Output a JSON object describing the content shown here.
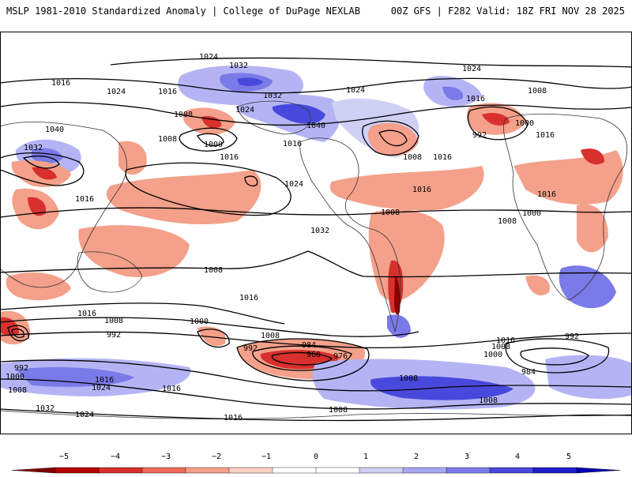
{
  "header": {
    "title_left": "MSLP 1981-2010 Standardized Anomaly | College of DuPage NEXLAB",
    "title_right": "00Z GFS | F282 Valid: 18Z FRI NOV 28 2025"
  },
  "map": {
    "contour_labels": [
      "1024",
      "1032",
      "1016",
      "1024",
      "1016",
      "1008",
      "1032",
      "1024",
      "1040",
      "1016",
      "1024",
      "1032",
      "1040",
      "1016",
      "1008",
      "1000",
      "1016",
      "1024",
      "1008",
      "992",
      "1000",
      "1008",
      "1016",
      "1016",
      "1024",
      "1032",
      "1016",
      "1008",
      "1016",
      "1016",
      "1008",
      "1000",
      "1008",
      "1016",
      "1008",
      "984",
      "968",
      "976",
      "992",
      "1008",
      "1000",
      "992",
      "1016",
      "1016",
      "1000",
      "992",
      "1008",
      "1016",
      "1024",
      "1032",
      "1024",
      "1016",
      "1008",
      "1008",
      "1008",
      "992",
      "1000",
      "984",
      "1016",
      "1008"
    ],
    "colors": {
      "negative_strong": "#8b0000",
      "negative": "#d7302d",
      "negative_weak": "#f4a582",
      "neutral": "#ffffff",
      "positive_weak": "#b4b4f5",
      "positive": "#5a5ae6",
      "positive_strong": "#0000cd"
    }
  },
  "colorbar": {
    "ticks": [
      "−5",
      "−4",
      "−3",
      "−2",
      "−1",
      "0",
      "1",
      "2",
      "3",
      "4",
      "5"
    ],
    "colors": [
      "#7f0000",
      "#b30000",
      "#d7302d",
      "#ef6a5a",
      "#f4a08a",
      "#fbd0c5",
      "#ffffff",
      "#ffffff",
      "#d0d0f5",
      "#a8a8f0",
      "#7a7ae8",
      "#4848dc",
      "#1e1ecc",
      "#0000b0"
    ]
  }
}
